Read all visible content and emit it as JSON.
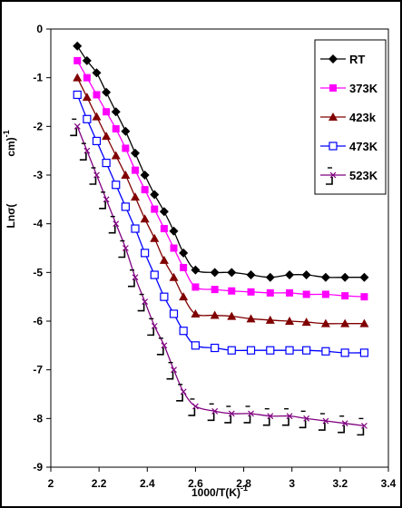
{
  "chart_data": {
    "type": "line",
    "title": "",
    "xlabel_main": "1000/T(K)",
    "xlabel_sup": "-1",
    "ylabel_left": "Lnσ(",
    "ylabel_right": "cm)",
    "ylabel_sup": "-1",
    "xlim": [
      2.0,
      3.4
    ],
    "ylim": [
      -9,
      0
    ],
    "xticks": [
      2.0,
      2.2,
      2.4,
      2.6,
      2.8,
      3.0,
      3.2,
      3.4
    ],
    "xtick_labels": [
      "2",
      "2.2",
      "2.4",
      "2.6",
      "2.8",
      "3",
      "3.2",
      "3.4"
    ],
    "yticks": [
      0,
      -1,
      -2,
      -3,
      -4,
      -5,
      -6,
      -7,
      -8,
      -9
    ],
    "ytick_labels": [
      "0",
      "-1",
      "-2",
      "-3",
      "-4",
      "-5",
      "-6",
      "-7",
      "-8",
      "-9"
    ],
    "grid": false,
    "legend_position": "top-right",
    "x": [
      2.11,
      2.15,
      2.19,
      2.23,
      2.27,
      2.31,
      2.35,
      2.39,
      2.43,
      2.47,
      2.51,
      2.55,
      2.6,
      2.68,
      2.75,
      2.83,
      2.91,
      2.99,
      3.06,
      3.14,
      3.22,
      3.3
    ],
    "series": [
      {
        "name": "RT",
        "marker": "diamond",
        "color": "#000000",
        "values": [
          -0.35,
          -0.65,
          -0.9,
          -1.3,
          -1.7,
          -2.1,
          -2.55,
          -3.0,
          -3.4,
          -3.75,
          -4.15,
          -4.6,
          -4.95,
          -5.0,
          -5.0,
          -5.05,
          -5.1,
          -5.05,
          -5.05,
          -5.1,
          -5.1,
          -5.1
        ]
      },
      {
        "name": "373K",
        "marker": "square-filled",
        "color": "#ff00ff",
        "values": [
          -0.65,
          -1.0,
          -1.35,
          -1.7,
          -2.05,
          -2.45,
          -2.9,
          -3.3,
          -3.7,
          -4.1,
          -4.5,
          -4.9,
          -5.3,
          -5.35,
          -5.38,
          -5.4,
          -5.42,
          -5.42,
          -5.45,
          -5.45,
          -5.48,
          -5.5
        ]
      },
      {
        "name": "423k",
        "marker": "triangle",
        "color": "#800000",
        "values": [
          -1.0,
          -1.4,
          -1.8,
          -2.2,
          -2.6,
          -3.0,
          -3.45,
          -3.9,
          -4.3,
          -4.75,
          -5.1,
          -5.5,
          -5.85,
          -5.88,
          -5.9,
          -5.95,
          -5.98,
          -6.0,
          -6.02,
          -6.05,
          -6.05,
          -6.05
        ]
      },
      {
        "name": "473K",
        "marker": "square-open",
        "color": "#0000ff",
        "values": [
          -1.35,
          -1.85,
          -2.3,
          -2.75,
          -3.2,
          -3.65,
          -4.1,
          -4.6,
          -5.05,
          -5.5,
          -5.85,
          -6.2,
          -6.5,
          -6.55,
          -6.6,
          -6.6,
          -6.6,
          -6.6,
          -6.6,
          -6.62,
          -6.65,
          -6.65
        ]
      },
      {
        "name": "523K",
        "marker": "x",
        "color": "#800080",
        "values": [
          -2.0,
          -2.5,
          -3.0,
          -3.5,
          -4.0,
          -4.5,
          -5.1,
          -5.6,
          -6.1,
          -6.5,
          -7.0,
          -7.45,
          -7.75,
          -7.85,
          -7.9,
          -7.9,
          -7.95,
          -7.95,
          -8.0,
          -8.05,
          -8.1,
          -8.15
        ]
      }
    ]
  }
}
